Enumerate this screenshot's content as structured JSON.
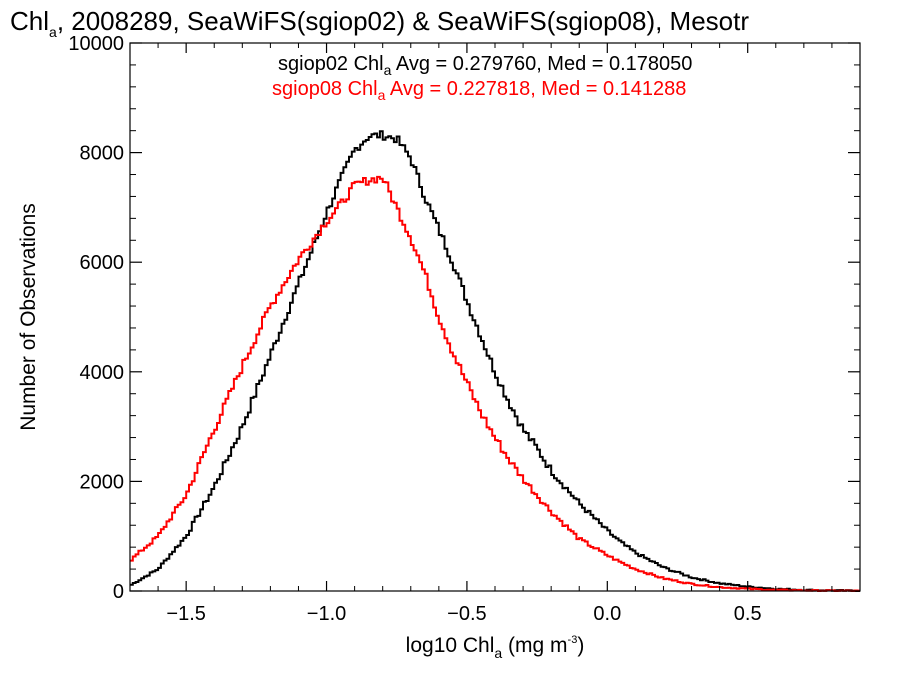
{
  "chart_data": {
    "type": "line",
    "title_parts": [
      "Chl",
      "a",
      ", 2008289, SeaWiFS(sgiop02) & SeaWiFS(sgiop08), Mesotr"
    ],
    "xlabel_parts": [
      "log10 Chl",
      "a",
      " (mg m",
      "-3",
      ")"
    ],
    "ylabel": "Number of Observations",
    "xlim": [
      -1.7,
      0.9
    ],
    "ylim": [
      0,
      10000
    ],
    "x_ticks": [
      -1.5,
      -1.0,
      -0.5,
      0.0,
      0.5
    ],
    "x_tick_labels": [
      "−1.5",
      "−1.0",
      "−0.5",
      "0.0",
      "0.5"
    ],
    "y_ticks": [
      0,
      2000,
      4000,
      6000,
      8000,
      10000
    ],
    "y_tick_labels": [
      "0",
      "2000",
      "4000",
      "6000",
      "8000",
      "10000"
    ],
    "grid": false,
    "legend_position": "top-right",
    "series": [
      {
        "legend_parts": [
          "sgiop02 Chl",
          "a",
          " Avg = 0.279760, Med = 0.178050"
        ],
        "color": "#000000",
        "x": [
          -1.7,
          -1.6,
          -1.5,
          -1.4,
          -1.3,
          -1.2,
          -1.1,
          -1.0,
          -0.95,
          -0.9,
          -0.85,
          -0.8,
          -0.75,
          -0.7,
          -0.65,
          -0.6,
          -0.55,
          -0.5,
          -0.45,
          -0.4,
          -0.35,
          -0.3,
          -0.25,
          -0.2,
          -0.15,
          -0.1,
          -0.05,
          0.0,
          0.05,
          0.1,
          0.2,
          0.3,
          0.4,
          0.5,
          0.6,
          0.7,
          0.8,
          0.9
        ],
        "y": [
          100,
          400,
          1000,
          1900,
          3000,
          4300,
          5600,
          6900,
          7500,
          8050,
          8300,
          8320,
          8250,
          7900,
          7200,
          6600,
          6000,
          5300,
          4650,
          4000,
          3450,
          2950,
          2600,
          2200,
          1900,
          1600,
          1350,
          1100,
          880,
          700,
          430,
          250,
          140,
          80,
          40,
          20,
          10,
          5
        ]
      },
      {
        "legend_parts": [
          "sgiop08 Chl",
          "a",
          " Avg = 0.227818, Med = 0.141288"
        ],
        "color": "#ff0000",
        "x": [
          -1.7,
          -1.6,
          -1.5,
          -1.4,
          -1.3,
          -1.2,
          -1.1,
          -1.0,
          -0.95,
          -0.9,
          -0.85,
          -0.8,
          -0.75,
          -0.7,
          -0.65,
          -0.6,
          -0.55,
          -0.5,
          -0.45,
          -0.4,
          -0.35,
          -0.3,
          -0.25,
          -0.2,
          -0.15,
          -0.1,
          -0.05,
          0.0,
          0.05,
          0.1,
          0.2,
          0.3,
          0.4,
          0.5,
          0.6,
          0.7,
          0.8,
          0.9
        ],
        "y": [
          550,
          1000,
          1750,
          2950,
          4100,
          5200,
          6050,
          6750,
          7050,
          7400,
          7500,
          7550,
          7000,
          6450,
          5800,
          5000,
          4350,
          3800,
          3250,
          2800,
          2400,
          2050,
          1750,
          1450,
          1200,
          950,
          800,
          650,
          520,
          400,
          230,
          130,
          70,
          40,
          20,
          10,
          5,
          2
        ]
      }
    ]
  }
}
